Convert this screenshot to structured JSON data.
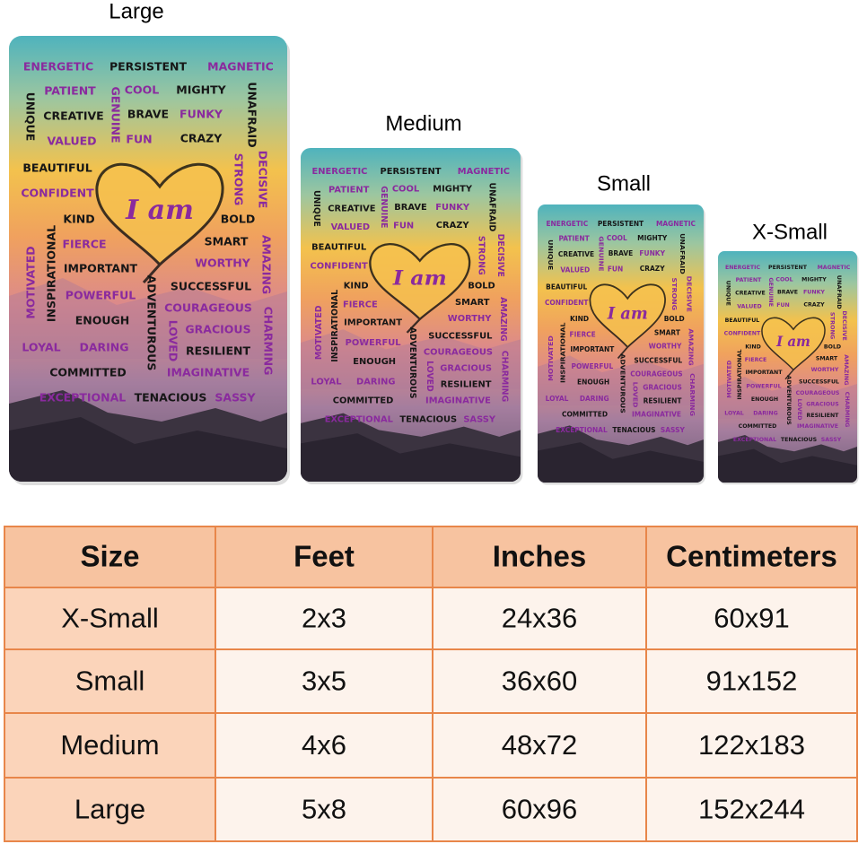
{
  "size_labels": [
    "Large",
    "Medium",
    "Small",
    "X-Small"
  ],
  "rug_center_text": "I am",
  "rug_words": [
    "ENERGETIC",
    "PERSISTENT",
    "MAGNETIC",
    "PATIENT",
    "COOL",
    "MIGHTY",
    "UNIQUE",
    "GENUINE",
    "CREATIVE",
    "BRAVE",
    "FUNKY",
    "UNAFRAID",
    "VALUED",
    "FUN",
    "CRAZY",
    "BEAUTIFUL",
    "DECISIVE",
    "STRONG",
    "CONFIDENT",
    "KIND",
    "BOLD",
    "MOTIVATED",
    "INSPIRATIONAL",
    "FIERCE",
    "SMART",
    "AMAZING",
    "IMPORTANT",
    "WORTHY",
    "SUCCESSFUL",
    "POWERFUL",
    "ADVENTUROUS",
    "COURAGEOUS",
    "CHARMING",
    "ENOUGH",
    "GRACIOUS",
    "LOVED",
    "LOYAL",
    "DARING",
    "RESILIENT",
    "COMMITTED",
    "IMAGINATIVE",
    "EXCEPTIONAL",
    "TENACIOUS",
    "SASSY"
  ],
  "table": {
    "header": [
      "Size",
      "Feet",
      "Inches",
      "Centimeters"
    ],
    "rows": [
      [
        "X-Small",
        "2x3",
        "24x36",
        "60x91"
      ],
      [
        "Small",
        "3x5",
        "36x60",
        "91x152"
      ],
      [
        "Medium",
        "4x6",
        "48x72",
        "122x183"
      ],
      [
        "Large",
        "5x8",
        "60x96",
        "152x244"
      ]
    ]
  }
}
